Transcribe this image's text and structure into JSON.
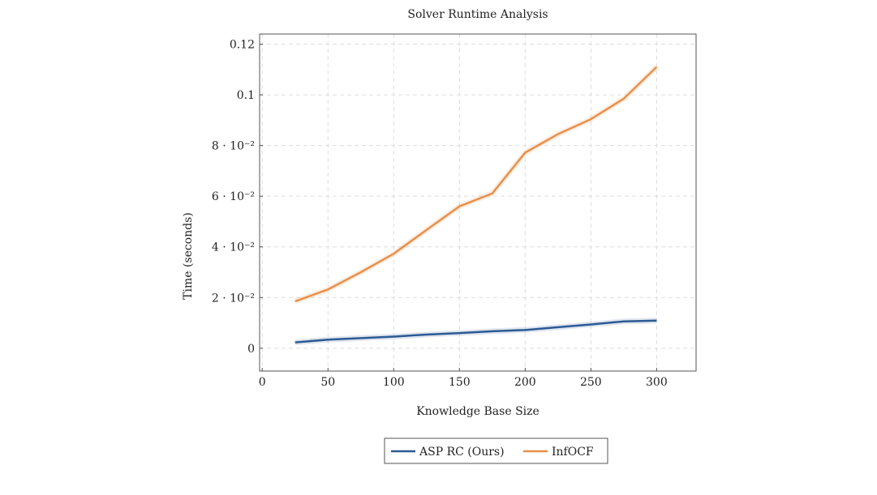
{
  "chart_data": {
    "type": "line",
    "title": "Solver Runtime Analysis",
    "xlabel": "Knowledge Base Size",
    "ylabel": "Time (seconds)",
    "xlim": [
      -2,
      330
    ],
    "ylim": [
      -0.009,
      0.124
    ],
    "x_ticks": [
      0,
      50,
      100,
      150,
      200,
      250,
      300
    ],
    "x_tick_labels": [
      "0",
      "50",
      "100",
      "150",
      "200",
      "250",
      "300"
    ],
    "y_ticks": [
      0,
      0.02,
      0.04,
      0.06,
      0.08,
      0.1,
      0.12
    ],
    "y_tick_labels": [
      "0",
      "2 · 10⁻²",
      "4 · 10⁻²",
      "6 · 10⁻²",
      "8 · 10⁻²",
      "0.1",
      "0.12"
    ],
    "grid": true,
    "legend_placement": "bottom-center",
    "x": [
      25,
      50,
      75,
      100,
      125,
      150,
      175,
      200,
      225,
      250,
      275,
      300
    ],
    "series": [
      {
        "name": "ASP RC (Ours)",
        "color": "#2c5a93",
        "values": [
          0.0023,
          0.0034,
          0.004,
          0.0046,
          0.0054,
          0.006,
          0.0067,
          0.0072,
          0.0083,
          0.0094,
          0.0106,
          0.0109
        ]
      },
      {
        "name": "InfOCF",
        "color": "#e8904a",
        "values": [
          0.0185,
          0.0232,
          0.03,
          0.0373,
          0.0467,
          0.056,
          0.0611,
          0.0772,
          0.0845,
          0.0904,
          0.0985,
          0.111
        ]
      }
    ]
  }
}
